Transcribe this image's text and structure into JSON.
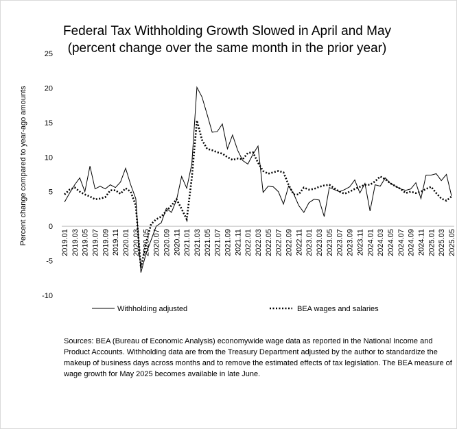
{
  "chart_data": {
    "type": "line",
    "title": "Federal Tax Withholding Growth Slowed in April and May",
    "subtitle": "(percent change over the same month in the prior year)",
    "y_label": "Percent change compared to year-ago amounts",
    "note": "Sources:  BEA (Bureau of Economic Analysis) economywide wage data as reported in the National Income and Product Accounts. Withholding data are from the Treasury Department adjusted by the author to standardize the makeup of business days across months and to remove the estimated effects of tax legislation. The BEA measure of wage growth for May 2025 becomes available in late June.",
    "categories": [
      "2019.01",
      null,
      "2019.03",
      null,
      "2019.05",
      null,
      "2019.07",
      null,
      "2019.09",
      null,
      "2019.11",
      null,
      "2020.01",
      null,
      "2020.03",
      null,
      "2020.05",
      null,
      "2020.07",
      null,
      "2020.09",
      null,
      "2020.11",
      null,
      "2021.01",
      null,
      "2021.03",
      null,
      "2021.05",
      null,
      "2021.07",
      null,
      "2021.09",
      null,
      "2021.11",
      null,
      "2022.01",
      null,
      "2022.03",
      null,
      "2022.05",
      null,
      "2022.07",
      null,
      "2022.09",
      null,
      "2022.11",
      null,
      "2023.01",
      null,
      "2023.03",
      null,
      "2023.05",
      null,
      "2023.07",
      null,
      "2023.09",
      null,
      "2023.11",
      null,
      "2024.01",
      null,
      "2024.03",
      null,
      "2024.05",
      null,
      "2024.07",
      null,
      "2024.09",
      null,
      "2024.11",
      null,
      "2025.01",
      null,
      "2025.03",
      null,
      "2025.05"
    ],
    "series": [
      {
        "name": "Withholding adjusted",
        "color": "#000000",
        "dash": "solid",
        "values": [
          3.5,
          4.8,
          6,
          7,
          5,
          8.7,
          5.4,
          5.8,
          5.4,
          6,
          5.6,
          6.4,
          8.4,
          6,
          4,
          -6.7,
          -4,
          -2,
          0,
          0.5,
          2.6,
          2,
          3.8,
          7.2,
          5.5,
          9,
          20.1,
          18.7,
          16.2,
          13.6,
          13.7,
          14.8,
          11.2,
          13.2,
          11,
          9.5,
          9,
          10.4,
          11.6,
          4.9,
          5.8,
          5.7,
          5,
          3.2,
          5.8,
          4.7,
          3,
          2,
          3.4,
          3.9,
          3.8,
          1.4,
          5.6,
          5.3,
          5,
          5.3,
          5.7,
          6.7,
          4.8,
          6.2,
          2.2,
          6,
          5.8,
          7,
          6.2,
          5.8,
          5.4,
          5.2,
          5.4,
          6.3,
          4,
          7.4,
          7.4,
          7.6,
          6.6,
          7.5,
          4.4
        ]
      },
      {
        "name": "BEA wages and salaries",
        "color": "#000000",
        "dash": "dotted",
        "values": [
          4.6,
          5.3,
          5.6,
          5,
          4.6,
          4.3,
          3.9,
          4,
          4.2,
          5.2,
          5.2,
          4.7,
          5.5,
          5,
          3,
          -6,
          -2.5,
          0.3,
          1,
          1.4,
          2.2,
          3,
          3.9,
          2.5,
          1,
          7,
          15.3,
          12.5,
          11.2,
          11,
          10.7,
          10.5,
          10,
          9.6,
          9.8,
          9.7,
          10.6,
          10.7,
          9.2,
          8,
          7.6,
          7.8,
          8,
          7.8,
          6,
          4.6,
          4.6,
          5.6,
          5.3,
          5.4,
          5.7,
          5.9,
          6,
          5.5,
          5,
          4.7,
          5,
          5.4,
          5.7,
          6,
          6,
          6.5,
          7.2,
          6.8,
          6.2,
          5.8,
          5.4,
          4.8,
          5,
          4.8,
          5,
          5.4,
          5.7,
          4.8,
          4,
          3.7,
          4.3
        ]
      }
    ],
    "ylim": [
      -10,
      25
    ],
    "yticks": [
      -10,
      -5,
      0,
      5,
      10,
      15,
      20,
      25
    ],
    "grid": false,
    "legend": "bottom"
  }
}
